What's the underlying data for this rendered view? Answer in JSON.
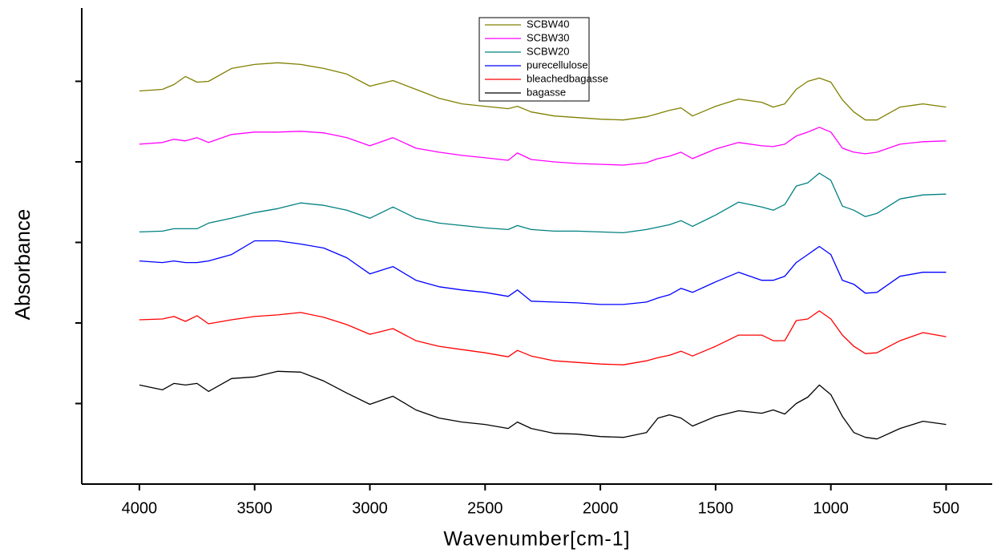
{
  "chart_data": {
    "type": "line",
    "x_label": "Wavenumber[cm-1]",
    "y_label": "Absorbance",
    "xlim": [
      4250,
      300
    ],
    "xticks": [
      4000,
      3500,
      3000,
      2500,
      2000,
      1500,
      1000,
      500
    ],
    "ylim": [
      0,
      5.91
    ],
    "yticks": [
      1,
      2,
      3,
      4,
      5
    ],
    "x": [
      4000,
      3900,
      3850,
      3800,
      3750,
      3700,
      3600,
      3500,
      3400,
      3300,
      3200,
      3100,
      3000,
      2900,
      2800,
      2700,
      2600,
      2500,
      2400,
      2360,
      2300,
      2200,
      2100,
      2000,
      1900,
      1800,
      1750,
      1700,
      1650,
      1600,
      1500,
      1400,
      1300,
      1250,
      1200,
      1150,
      1100,
      1050,
      1000,
      950,
      900,
      850,
      800,
      700,
      600,
      500
    ],
    "series": [
      {
        "name": "SCBW40",
        "color": "#808000",
        "values": [
          4.88,
          4.9,
          4.96,
          5.06,
          4.99,
          5.0,
          5.16,
          5.21,
          5.23,
          5.21,
          5.16,
          5.09,
          4.94,
          5.01,
          4.9,
          4.79,
          4.72,
          4.69,
          4.66,
          4.69,
          4.62,
          4.57,
          4.55,
          4.53,
          4.52,
          4.56,
          4.6,
          4.64,
          4.67,
          4.57,
          4.69,
          4.78,
          4.74,
          4.68,
          4.72,
          4.9,
          5.0,
          5.04,
          4.99,
          4.77,
          4.62,
          4.52,
          4.52,
          4.68,
          4.72,
          4.68
        ]
      },
      {
        "name": "SCBW30",
        "color": "#ff00ff",
        "values": [
          4.22,
          4.24,
          4.28,
          4.26,
          4.3,
          4.24,
          4.34,
          4.37,
          4.37,
          4.38,
          4.36,
          4.3,
          4.2,
          4.3,
          4.17,
          4.12,
          4.08,
          4.05,
          4.02,
          4.11,
          4.03,
          4.0,
          3.98,
          3.97,
          3.96,
          3.99,
          4.04,
          4.07,
          4.12,
          4.04,
          4.16,
          4.24,
          4.2,
          4.19,
          4.22,
          4.32,
          4.37,
          4.43,
          4.37,
          4.17,
          4.12,
          4.1,
          4.12,
          4.22,
          4.25,
          4.26
        ]
      },
      {
        "name": "SCBW20",
        "color": "#008080",
        "values": [
          3.13,
          3.14,
          3.17,
          3.17,
          3.17,
          3.24,
          3.3,
          3.37,
          3.42,
          3.49,
          3.46,
          3.4,
          3.3,
          3.44,
          3.3,
          3.24,
          3.21,
          3.18,
          3.16,
          3.21,
          3.16,
          3.14,
          3.14,
          3.13,
          3.12,
          3.16,
          3.19,
          3.22,
          3.27,
          3.2,
          3.34,
          3.5,
          3.44,
          3.4,
          3.47,
          3.7,
          3.74,
          3.86,
          3.77,
          3.45,
          3.4,
          3.32,
          3.36,
          3.54,
          3.59,
          3.6
        ]
      },
      {
        "name": "purecellulose",
        "color": "#0000ff",
        "values": [
          2.77,
          2.75,
          2.77,
          2.75,
          2.75,
          2.77,
          2.85,
          3.02,
          3.02,
          2.98,
          2.93,
          2.81,
          2.61,
          2.7,
          2.53,
          2.45,
          2.41,
          2.38,
          2.33,
          2.41,
          2.27,
          2.26,
          2.25,
          2.23,
          2.23,
          2.26,
          2.31,
          2.35,
          2.43,
          2.38,
          2.51,
          2.63,
          2.53,
          2.53,
          2.58,
          2.75,
          2.85,
          2.95,
          2.85,
          2.53,
          2.48,
          2.37,
          2.38,
          2.58,
          2.63,
          2.63
        ]
      },
      {
        "name": "bleachedbagasse",
        "color": "#ff0000",
        "values": [
          2.04,
          2.05,
          2.08,
          2.02,
          2.09,
          1.99,
          2.04,
          2.08,
          2.1,
          2.13,
          2.07,
          1.98,
          1.86,
          1.93,
          1.78,
          1.71,
          1.67,
          1.63,
          1.58,
          1.66,
          1.59,
          1.53,
          1.51,
          1.49,
          1.48,
          1.53,
          1.57,
          1.6,
          1.65,
          1.59,
          1.71,
          1.85,
          1.85,
          1.78,
          1.78,
          2.03,
          2.05,
          2.15,
          2.05,
          1.85,
          1.71,
          1.62,
          1.63,
          1.78,
          1.88,
          1.83
        ]
      },
      {
        "name": "bagasse",
        "color": "#000000",
        "values": [
          1.23,
          1.17,
          1.25,
          1.23,
          1.25,
          1.15,
          1.31,
          1.33,
          1.4,
          1.39,
          1.28,
          1.13,
          0.99,
          1.09,
          0.92,
          0.82,
          0.77,
          0.74,
          0.69,
          0.77,
          0.69,
          0.63,
          0.62,
          0.59,
          0.58,
          0.64,
          0.82,
          0.86,
          0.82,
          0.72,
          0.84,
          0.91,
          0.88,
          0.92,
          0.87,
          1.0,
          1.08,
          1.23,
          1.11,
          0.84,
          0.64,
          0.58,
          0.56,
          0.69,
          0.78,
          0.74
        ]
      }
    ]
  }
}
